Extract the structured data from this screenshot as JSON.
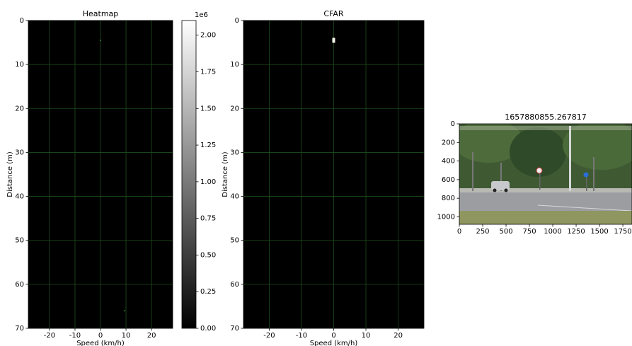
{
  "chart_data": [
    {
      "type": "heatmap",
      "title": "Heatmap",
      "xlabel": "Speed (km/h)",
      "ylabel": "Distance (m)",
      "xlim": [
        -28.3,
        28.3
      ],
      "ylim": [
        70,
        0
      ],
      "xticks": [
        -20,
        -10,
        0,
        10,
        20
      ],
      "yticks": [
        0,
        10,
        20,
        30,
        40,
        50,
        60,
        70
      ],
      "grid": true,
      "grid_color": "#1c4d1c",
      "background": "#000000",
      "series": [
        {
          "color": "#3c9c3c",
          "x": [
            0,
            9.5
          ],
          "values": [
            4.5,
            66
          ]
        }
      ],
      "colorbar": {
        "offset_label": "1e6",
        "lim": [
          0,
          2.1
        ],
        "colors": [
          "#000000",
          "#ffffff"
        ],
        "ticks": [
          {
            "value": 0,
            "label": "0.00"
          },
          {
            "value": 0.25,
            "label": "0.25"
          },
          {
            "value": 0.5,
            "label": "0.50"
          },
          {
            "value": 0.75,
            "label": "0.75"
          },
          {
            "value": 1,
            "label": "1.00"
          },
          {
            "value": 1.25,
            "label": "1.25"
          },
          {
            "value": 1.5,
            "label": "1.50"
          },
          {
            "value": 1.75,
            "label": "1.75"
          },
          {
            "value": 2,
            "label": "2.00"
          }
        ]
      }
    },
    {
      "type": "heatmap",
      "title": "CFAR",
      "xlabel": "Speed (km/h)",
      "ylabel": "Distance (m)",
      "xlim": [
        -28,
        28
      ],
      "ylim": [
        70,
        0
      ],
      "xticks": [
        -20,
        -10,
        0,
        10,
        20
      ],
      "yticks": [
        0,
        10,
        20,
        30,
        40,
        50,
        60,
        70
      ],
      "grid": true,
      "grid_color": "#1c4d1c",
      "background": "#000000",
      "series": [
        {
          "color": "#f4f4e8",
          "x": [
            0
          ],
          "values": [
            4.5
          ]
        }
      ]
    },
    {
      "type": "image",
      "title": "1657880855.267817",
      "xlim": [
        0,
        1848
      ],
      "ylim": [
        1080,
        0
      ],
      "xticks": [
        0,
        250,
        500,
        750,
        1000,
        1250,
        1500,
        1750
      ],
      "yticks": [
        0,
        200,
        400,
        600,
        800,
        1000
      ]
    }
  ]
}
